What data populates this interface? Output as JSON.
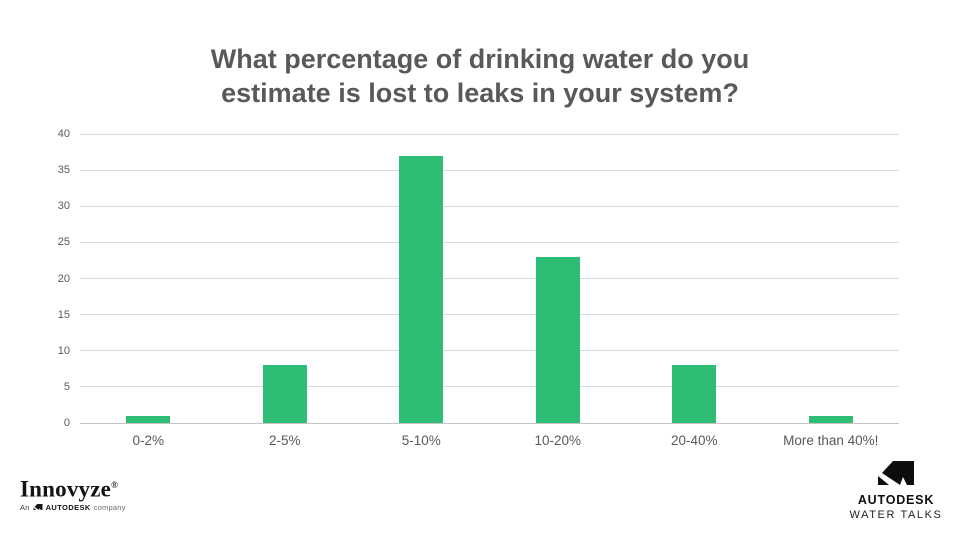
{
  "title": {
    "line1": "What percentage of drinking water do you",
    "line2": "estimate is lost to leaks in your system?",
    "color": "#595959"
  },
  "chart_data": {
    "type": "bar",
    "categories": [
      "0-2%",
      "2-5%",
      "5-10%",
      "10-20%",
      "20-40%",
      "More than 40%!"
    ],
    "values": [
      1,
      8,
      37,
      23,
      8,
      1
    ],
    "title": "What percentage of drinking water do you estimate is lost to leaks in your system?",
    "xlabel": "",
    "ylabel": "",
    "ylim": [
      0,
      40
    ],
    "ytick_step": 5,
    "yticks": [
      0,
      5,
      10,
      15,
      20,
      25,
      30,
      35,
      40
    ],
    "grid": true,
    "legend": false,
    "bar_color": "#2ebd74",
    "gridline_color": "#d9d9d9",
    "axis_text_color": "#595959"
  },
  "footer": {
    "innovyze": {
      "name": "Innovyze",
      "registered": "®",
      "tagline_prefix": "An",
      "tagline_brand": "AUTODESK",
      "tagline_suffix": "company"
    },
    "autodesk": {
      "brand": "AUTODESK",
      "sub": "WATER TALKS"
    }
  }
}
